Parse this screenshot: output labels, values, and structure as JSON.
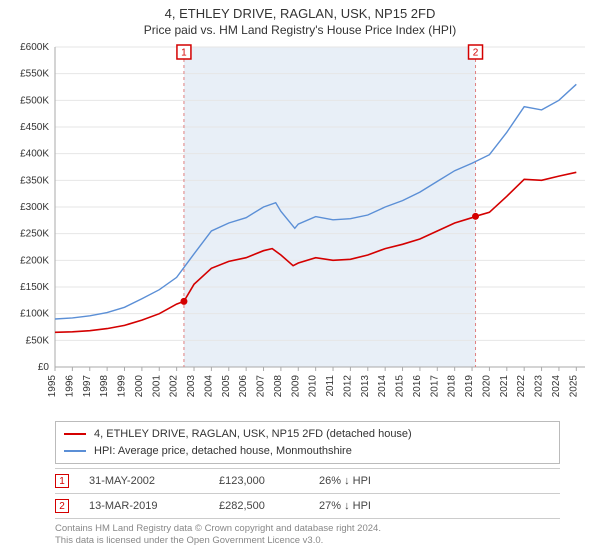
{
  "title1": "4, ETHLEY DRIVE, RAGLAN, USK, NP15 2FD",
  "title2": "Price paid vs. HM Land Registry's House Price Index (HPI)",
  "chart": {
    "type": "line",
    "background_color": "#ffffff",
    "grid_color": "#e6e6e6",
    "shade_color": "#e8eff7",
    "x_years": [
      1995,
      1996,
      1997,
      1998,
      1999,
      2000,
      2001,
      2002,
      2003,
      2004,
      2005,
      2006,
      2007,
      2008,
      2009,
      2010,
      2011,
      2012,
      2013,
      2014,
      2015,
      2016,
      2017,
      2018,
      2019,
      2020,
      2021,
      2022,
      2023,
      2024,
      2025
    ],
    "y_ticks": [
      0,
      50000,
      100000,
      150000,
      200000,
      250000,
      300000,
      350000,
      400000,
      450000,
      500000,
      550000,
      600000
    ],
    "y_tick_labels": [
      "£0",
      "£50K",
      "£100K",
      "£150K",
      "£200K",
      "£250K",
      "£300K",
      "£350K",
      "£400K",
      "£450K",
      "£500K",
      "£550K",
      "£600K"
    ],
    "ylim": [
      0,
      600000
    ],
    "xlim": [
      1995,
      2025.5
    ],
    "shade_start": 2002.42,
    "shade_end": 2019.2,
    "series": {
      "red": {
        "color": "#d40000",
        "line_width": 1.6,
        "points": [
          [
            1995,
            65000
          ],
          [
            1996,
            66000
          ],
          [
            1997,
            68000
          ],
          [
            1998,
            72000
          ],
          [
            1999,
            78000
          ],
          [
            2000,
            88000
          ],
          [
            2001,
            100000
          ],
          [
            2002,
            118000
          ],
          [
            2002.42,
            123000
          ],
          [
            2003,
            155000
          ],
          [
            2004,
            185000
          ],
          [
            2005,
            198000
          ],
          [
            2006,
            205000
          ],
          [
            2007,
            218000
          ],
          [
            2007.5,
            222000
          ],
          [
            2008,
            210000
          ],
          [
            2008.7,
            190000
          ],
          [
            2009,
            195000
          ],
          [
            2010,
            205000
          ],
          [
            2011,
            200000
          ],
          [
            2012,
            202000
          ],
          [
            2013,
            210000
          ],
          [
            2014,
            222000
          ],
          [
            2015,
            230000
          ],
          [
            2016,
            240000
          ],
          [
            2017,
            255000
          ],
          [
            2018,
            270000
          ],
          [
            2019,
            280000
          ],
          [
            2019.2,
            282500
          ],
          [
            2020,
            290000
          ],
          [
            2021,
            320000
          ],
          [
            2022,
            352000
          ],
          [
            2023,
            350000
          ],
          [
            2024,
            358000
          ],
          [
            2025,
            365000
          ]
        ]
      },
      "blue": {
        "color": "#5b8fd6",
        "line_width": 1.4,
        "points": [
          [
            1995,
            90000
          ],
          [
            1996,
            92000
          ],
          [
            1997,
            96000
          ],
          [
            1998,
            102000
          ],
          [
            1999,
            112000
          ],
          [
            2000,
            128000
          ],
          [
            2001,
            145000
          ],
          [
            2002,
            168000
          ],
          [
            2003,
            212000
          ],
          [
            2004,
            255000
          ],
          [
            2005,
            270000
          ],
          [
            2006,
            280000
          ],
          [
            2007,
            300000
          ],
          [
            2007.7,
            308000
          ],
          [
            2008,
            292000
          ],
          [
            2008.8,
            260000
          ],
          [
            2009,
            268000
          ],
          [
            2010,
            282000
          ],
          [
            2011,
            276000
          ],
          [
            2012,
            278000
          ],
          [
            2013,
            285000
          ],
          [
            2014,
            300000
          ],
          [
            2015,
            312000
          ],
          [
            2016,
            328000
          ],
          [
            2017,
            348000
          ],
          [
            2018,
            368000
          ],
          [
            2019,
            382000
          ],
          [
            2020,
            398000
          ],
          [
            2021,
            440000
          ],
          [
            2022,
            488000
          ],
          [
            2023,
            482000
          ],
          [
            2024,
            500000
          ],
          [
            2025,
            530000
          ]
        ]
      }
    },
    "markers": [
      {
        "n": "1",
        "x": 2002.42,
        "y": 123000
      },
      {
        "n": "2",
        "x": 2019.2,
        "y": 282500
      }
    ],
    "marker_box_color": "#d40000",
    "vdash_color": "#e08080"
  },
  "legend": {
    "red_label": "4, ETHLEY DRIVE, RAGLAN, USK, NP15 2FD (detached house)",
    "blue_label": "HPI: Average price, detached house, Monmouthshire"
  },
  "data_rows": [
    {
      "n": "1",
      "date": "31-MAY-2002",
      "price": "£123,000",
      "pct": "26% ↓ HPI"
    },
    {
      "n": "2",
      "date": "13-MAR-2019",
      "price": "£282,500",
      "pct": "27% ↓ HPI"
    }
  ],
  "footnote_line1": "Contains HM Land Registry data © Crown copyright and database right 2024.",
  "footnote_line2": "This data is licensed under the Open Government Licence v3.0."
}
